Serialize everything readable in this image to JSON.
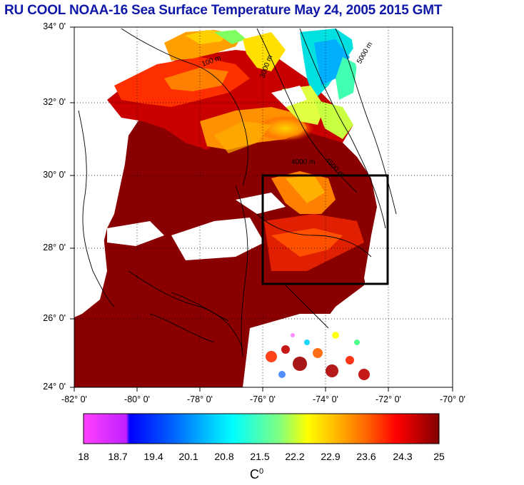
{
  "title": "RU COOL  NOAA-16 Sea Surface Temperature May 24, 2005 2015 GMT",
  "axes": {
    "lat_ticks": [
      "34° 0'",
      "32° 0'",
      "30° 0'",
      "28° 0'",
      "26° 0'",
      "24° 0'"
    ],
    "lon_ticks": [
      "-82° 0'",
      "-80° 0'",
      "-78° 0'",
      "-76° 0'",
      "-74° 0'",
      "-72° 0'",
      "-70° 0'"
    ]
  },
  "map": {
    "lat_range": [
      24,
      34
    ],
    "lon_range": [
      -82,
      -70
    ],
    "gridlines": "dotted",
    "study_box": {
      "lon": [
        -76,
        -72
      ],
      "lat": [
        27,
        30
      ]
    },
    "contour_labels": [
      "100 m",
      "3000 m",
      "4000 m",
      "4500 m",
      "5000 m"
    ]
  },
  "colorbar": {
    "labels": [
      "18",
      "18.7",
      "19.4",
      "20.1",
      "20.8",
      "21.5",
      "22.2",
      "22.9",
      "23.6",
      "24.3",
      "25"
    ],
    "unit_base": "C",
    "unit_sup": "0",
    "colors": [
      "#ff40ff",
      "#c020ff",
      "#0000ff",
      "#0060ff",
      "#00c0ff",
      "#00ffff",
      "#80ff80",
      "#ffff00",
      "#ffb000",
      "#ff6000",
      "#ff0000",
      "#c00000",
      "#800000"
    ]
  }
}
